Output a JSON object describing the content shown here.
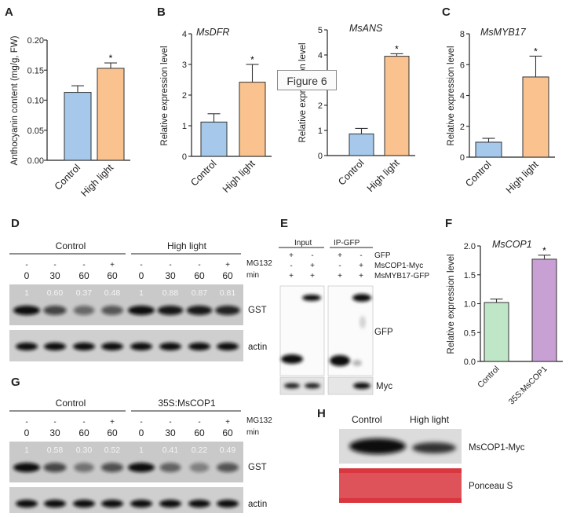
{
  "badge": "Figure 6",
  "colors": {
    "blue": "#a6c8ea",
    "orange": "#f9c28e",
    "green": "#bfe6c6",
    "purple": "#c9a0d4"
  },
  "panels": {
    "A": {
      "label": "A"
    },
    "B": {
      "label": "B"
    },
    "C": {
      "label": "C"
    },
    "D": {
      "label": "D"
    },
    "E": {
      "label": "E"
    },
    "F": {
      "label": "F"
    },
    "G": {
      "label": "G"
    },
    "H": {
      "label": "H"
    }
  },
  "chart_data": [
    {
      "id": "A",
      "type": "bar",
      "title": "",
      "ylabel": "Anthocyanin content (mg/g, FW)",
      "categories": [
        "Control",
        "High light"
      ],
      "values": [
        0.113,
        0.153
      ],
      "errors": [
        0.011,
        0.009
      ],
      "ylim": [
        0,
        0.2
      ],
      "yticks": [
        "0.00",
        "0.05",
        "0.10",
        "0.15",
        "0.20"
      ],
      "significance": [
        "",
        "*"
      ],
      "colors": [
        "#a6c8ea",
        "#f9c28e"
      ]
    },
    {
      "id": "B1",
      "type": "bar",
      "title": "MsDFR",
      "ylabel": "Relative expression level",
      "categories": [
        "Control",
        "High light"
      ],
      "values": [
        1.12,
        2.42
      ],
      "errors": [
        0.27,
        0.58
      ],
      "ylim": [
        0,
        4
      ],
      "yticks": [
        "0",
        "1",
        "2",
        "3",
        "4"
      ],
      "significance": [
        "",
        "*"
      ],
      "colors": [
        "#a6c8ea",
        "#f9c28e"
      ]
    },
    {
      "id": "B2",
      "type": "bar",
      "title": "MsANS",
      "ylabel": "Relative expression level",
      "categories": [
        "Control",
        "High light"
      ],
      "values": [
        0.86,
        3.95
      ],
      "errors": [
        0.22,
        0.1
      ],
      "ylim": [
        0,
        5
      ],
      "yticks": [
        "0",
        "1",
        "2",
        "3",
        "4",
        "5"
      ],
      "significance": [
        "",
        "*"
      ],
      "colors": [
        "#a6c8ea",
        "#f9c28e"
      ]
    },
    {
      "id": "C",
      "type": "bar",
      "title": "MsMYB17",
      "ylabel": "Relative expression level",
      "categories": [
        "Control",
        "High light"
      ],
      "values": [
        0.97,
        5.2
      ],
      "errors": [
        0.25,
        1.35
      ],
      "ylim": [
        0,
        8
      ],
      "yticks": [
        "0",
        "2",
        "4",
        "6",
        "8"
      ],
      "significance": [
        "",
        "*"
      ],
      "colors": [
        "#a6c8ea",
        "#f9c28e"
      ]
    },
    {
      "id": "F",
      "type": "bar",
      "title": "MsCOP1",
      "ylabel": "Relative expression level",
      "categories": [
        "Control",
        "35S:MsCOP1"
      ],
      "values": [
        1.02,
        1.77
      ],
      "errors": [
        0.06,
        0.07
      ],
      "ylim": [
        0,
        2
      ],
      "yticks": [
        "0.0",
        "0.5",
        "1.0",
        "1.5",
        "2.0"
      ],
      "significance": [
        "",
        "*"
      ],
      "colors": [
        "#bfe6c6",
        "#c9a0d4"
      ]
    }
  ],
  "blot_D": {
    "group1": "Control",
    "group2": "High light",
    "mg132_label": "MG132",
    "min_label": "min",
    "mg132": [
      "-",
      "-",
      "-",
      "+",
      "-",
      "-",
      "-",
      "+"
    ],
    "minutes": [
      "0",
      "30",
      "60",
      "60",
      "0",
      "30",
      "60",
      "60"
    ],
    "ratios": [
      "1",
      "0.60",
      "0.37",
      "0.48",
      "1",
      "0.88",
      "0.87",
      "0.81"
    ],
    "band1": "GST",
    "band2": "actin"
  },
  "blot_G": {
    "group1": "Control",
    "group2": "35S:MsCOP1",
    "mg132_label": "MG132",
    "min_label": "min",
    "mg132": [
      "-",
      "-",
      "-",
      "+",
      "-",
      "-",
      "-",
      "+"
    ],
    "minutes": [
      "0",
      "30",
      "60",
      "60",
      "0",
      "30",
      "60",
      "60"
    ],
    "ratios": [
      "1",
      "0.58",
      "0.30",
      "0.52",
      "1",
      "0.41",
      "0.22",
      "0.49"
    ],
    "band1": "GST",
    "band2": "actin"
  },
  "blot_E": {
    "input": "Input",
    "ip": "IP-GFP",
    "rows": [
      {
        "label": "GFP",
        "signs": [
          "+",
          "-",
          "+",
          "-"
        ]
      },
      {
        "label": "MsCOP1-Myc",
        "signs": [
          "-",
          "+",
          "-",
          "+"
        ]
      },
      {
        "label": "MsMYB17-GFP",
        "signs": [
          "+",
          "+",
          "+",
          "+"
        ]
      }
    ],
    "band1": "GFP",
    "band2": "Myc"
  },
  "blot_H": {
    "cols": [
      "Control",
      "High light"
    ],
    "band1": "MsCOP1-Myc",
    "band2": "Ponceau S"
  }
}
